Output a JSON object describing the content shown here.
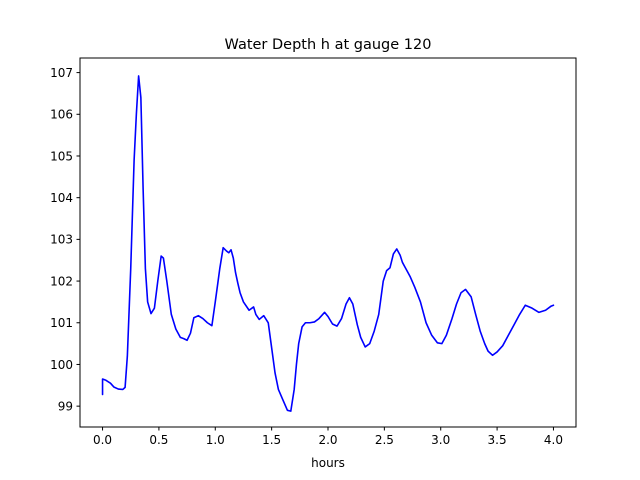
{
  "chart_data": {
    "type": "line",
    "title": "Water Depth h at gauge 120",
    "xlabel": "hours",
    "ylabel": "",
    "xlim": [
      -0.2,
      4.2
    ],
    "ylim": [
      98.5,
      107.35
    ],
    "xticks": [
      0.0,
      0.5,
      1.0,
      1.5,
      2.0,
      2.5,
      3.0,
      3.5,
      4.0
    ],
    "xtick_labels": [
      "0.0",
      "0.5",
      "1.0",
      "1.5",
      "2.0",
      "2.5",
      "3.0",
      "3.5",
      "4.0"
    ],
    "yticks": [
      99,
      100,
      101,
      102,
      103,
      104,
      105,
      106,
      107
    ],
    "ytick_labels": [
      "99",
      "100",
      "101",
      "102",
      "103",
      "104",
      "105",
      "106",
      "107"
    ],
    "grid": false,
    "legend": "none",
    "series": [
      {
        "color": "#0000ff",
        "x": [
          0.0,
          0.0,
          0.03,
          0.07,
          0.1,
          0.14,
          0.18,
          0.2,
          0.22,
          0.25,
          0.28,
          0.3,
          0.32,
          0.34,
          0.36,
          0.38,
          0.4,
          0.43,
          0.46,
          0.49,
          0.52,
          0.54,
          0.57,
          0.61,
          0.65,
          0.69,
          0.72,
          0.75,
          0.78,
          0.81,
          0.85,
          0.89,
          0.93,
          0.97,
          1.0,
          1.02,
          1.04,
          1.07,
          1.1,
          1.12,
          1.14,
          1.16,
          1.18,
          1.2,
          1.22,
          1.25,
          1.3,
          1.34,
          1.36,
          1.39,
          1.43,
          1.47,
          1.5,
          1.53,
          1.56,
          1.6,
          1.64,
          1.67,
          1.7,
          1.72,
          1.74,
          1.77,
          1.8,
          1.84,
          1.88,
          1.92,
          1.97,
          2.0,
          2.04,
          2.08,
          2.12,
          2.16,
          2.19,
          2.22,
          2.24,
          2.26,
          2.29,
          2.33,
          2.37,
          2.41,
          2.45,
          2.49,
          2.52,
          2.55,
          2.58,
          2.61,
          2.64,
          2.66,
          2.68,
          2.7,
          2.73,
          2.77,
          2.82,
          2.87,
          2.92,
          2.97,
          3.01,
          3.05,
          3.1,
          3.14,
          3.18,
          3.22,
          3.27,
          3.31,
          3.35,
          3.39,
          3.42,
          3.46,
          3.5,
          3.55,
          3.6,
          3.65,
          3.7,
          3.75,
          3.81,
          3.87,
          3.93,
          3.98,
          4.0
        ],
        "y": [
          99.28,
          99.65,
          99.62,
          99.55,
          99.46,
          99.41,
          99.4,
          99.45,
          100.2,
          102.3,
          104.9,
          106.0,
          106.92,
          106.4,
          104.2,
          102.3,
          101.5,
          101.22,
          101.35,
          102.0,
          102.6,
          102.55,
          102.0,
          101.2,
          100.85,
          100.65,
          100.62,
          100.58,
          100.75,
          101.12,
          101.17,
          101.1,
          101.0,
          100.93,
          101.5,
          101.9,
          102.3,
          102.8,
          102.72,
          102.68,
          102.75,
          102.55,
          102.2,
          101.95,
          101.72,
          101.5,
          101.3,
          101.38,
          101.2,
          101.08,
          101.17,
          101.0,
          100.4,
          99.8,
          99.4,
          99.15,
          98.9,
          98.88,
          99.4,
          100.0,
          100.5,
          100.9,
          101.0,
          101.0,
          101.02,
          101.1,
          101.25,
          101.15,
          100.97,
          100.92,
          101.1,
          101.45,
          101.6,
          101.45,
          101.2,
          100.95,
          100.65,
          100.42,
          100.5,
          100.8,
          101.2,
          102.0,
          102.25,
          102.32,
          102.65,
          102.77,
          102.62,
          102.45,
          102.35,
          102.25,
          102.1,
          101.85,
          101.5,
          101.0,
          100.7,
          100.52,
          100.5,
          100.7,
          101.1,
          101.45,
          101.72,
          101.8,
          101.62,
          101.2,
          100.8,
          100.5,
          100.32,
          100.22,
          100.3,
          100.45,
          100.7,
          100.95,
          101.2,
          101.42,
          101.35,
          101.25,
          101.3,
          101.4,
          101.42
        ]
      }
    ]
  }
}
